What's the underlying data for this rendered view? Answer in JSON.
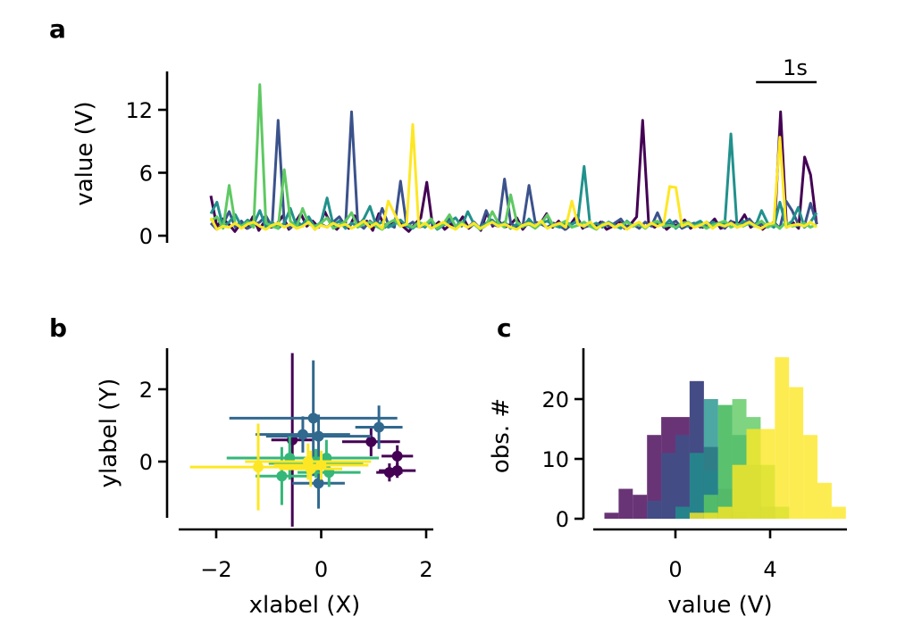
{
  "chart_data": [
    {
      "panel": "a",
      "type": "line",
      "ylabel": "value (V)",
      "ylim": [
        -0.5,
        15.5
      ],
      "yticks": [
        0,
        6,
        12
      ],
      "xlim": [
        0,
        100
      ],
      "scalebar": {
        "label": "1s",
        "length": 10
      },
      "series": [
        {
          "color": "#440154",
          "values": [
            3.8,
            0.9,
            1.6,
            1.1,
            0.4,
            1.2,
            0.7,
            1.8,
            0.5,
            1.4,
            0.8,
            1.1,
            1.9,
            0.6,
            1.2,
            2.1,
            0.9,
            1.4,
            0.8,
            2.3,
            1.1,
            0.6,
            1.3,
            0.7,
            1.9,
            0.9,
            1.4,
            0.5,
            2.1,
            0.8,
            1.2,
            1.6,
            0.9,
            0.4,
            1.1,
            1.7,
            5.1,
            0.8,
            1.3,
            0.6,
            1.1,
            0.9,
            1.8,
            0.7,
            1.2,
            0.5,
            2.2,
            0.9,
            1.4,
            0.8,
            1.1,
            1.7,
            0.6,
            1.3,
            0.9,
            1.2,
            2.1,
            0.8,
            1.4,
            0.6,
            1.1,
            1.9,
            0.7,
            1.2,
            0.8,
            1.3,
            0.6,
            0.9,
            1.4,
            0.7,
            1.1,
            1.8,
            11.0,
            1.2,
            0.8,
            1.3,
            0.6,
            1.1,
            0.9,
            1.5,
            0.7,
            1.2,
            0.8,
            1.0,
            1.6,
            0.7,
            0.9,
            1.3,
            1.1,
            2.0,
            0.8,
            1.2,
            0.6,
            1.1,
            0.9,
            11.8,
            0.8,
            1.3,
            0.7,
            7.5,
            5.8,
            1.1
          ]
        },
        {
          "color": "#3b528b",
          "values": [
            1.2,
            0.6,
            1.1,
            2.3,
            0.8,
            1.4,
            0.7,
            1.0,
            1.3,
            1.9,
            0.8,
            11.0,
            1.2,
            0.7,
            1.4,
            0.9,
            1.6,
            0.6,
            1.1,
            0.8,
            1.3,
            1.8,
            0.9,
            11.8,
            1.2,
            0.7,
            1.4,
            0.9,
            2.6,
            1.1,
            0.8,
            5.2,
            0.9,
            1.3,
            0.8,
            1.0,
            1.4,
            0.7,
            1.1,
            1.6,
            0.9,
            1.2,
            0.8,
            1.3,
            0.7,
            2.4,
            1.1,
            0.9,
            5.4,
            1.2,
            0.8,
            1.0,
            4.8,
            1.3,
            1.1,
            0.8,
            1.2,
            0.9,
            0.6,
            1.1,
            1.4,
            0.8,
            1.0,
            0.7,
            1.3,
            0.9,
            1.2,
            1.6,
            0.8,
            1.1,
            0.7,
            1.3,
            0.9,
            2.2,
            0.8,
            1.1,
            1.4,
            0.7,
            1.0,
            1.2,
            0.8,
            1.3,
            0.9,
            1.1,
            0.7,
            1.4,
            0.8,
            1.2,
            1.6,
            0.9,
            1.1,
            0.8,
            1.3,
            0.7,
            3.3,
            2.4,
            1.1,
            0.9,
            3.1,
            1.2
          ]
        },
        {
          "color": "#21918c",
          "values": [
            2.1,
            3.2,
            0.8,
            1.3,
            2.0,
            0.9,
            1.5,
            1.1,
            2.4,
            0.8,
            1.3,
            0.7,
            1.2,
            2.6,
            0.9,
            1.1,
            1.8,
            0.8,
            1.3,
            3.6,
            1.0,
            1.4,
            0.7,
            1.2,
            0.9,
            1.6,
            2.8,
            1.0,
            1.3,
            0.8,
            1.1,
            1.5,
            0.9,
            0.7,
            1.2,
            0.8,
            1.4,
            0.6,
            1.0,
            1.3,
            1.7,
            0.9,
            2.3,
            1.1,
            0.8,
            1.2,
            1.5,
            0.9,
            1.3,
            0.7,
            1.1,
            0.8,
            1.6,
            0.9,
            1.2,
            1.4,
            1.0,
            0.8,
            1.2,
            1.1,
            1.5,
            6.6,
            0.9,
            1.2,
            0.8,
            1.3,
            1.0,
            0.7,
            1.4,
            0.9,
            1.2,
            0.8,
            1.1,
            1.3,
            0.9,
            1.5,
            0.7,
            1.2,
            0.9,
            1.1,
            1.4,
            0.8,
            1.3,
            1.0,
            1.2,
            9.7,
            0.8,
            1.4,
            1.1,
            0.9,
            2.4,
            1.2,
            0.8,
            3.2,
            0.9,
            1.4,
            2.7,
            0.8,
            1.3,
            2.2
          ]
        },
        {
          "color": "#5ec962",
          "values": [
            1.4,
            1.8,
            0.7,
            4.8,
            1.1,
            0.9,
            1.3,
            0.8,
            14.4,
            1.2,
            0.9,
            0.7,
            6.3,
            1.4,
            0.8,
            2.6,
            1.1,
            0.9,
            1.2,
            1.7,
            0.7,
            1.0,
            1.4,
            2.2,
            0.8,
            1.1,
            1.3,
            0.9,
            0.6,
            1.2,
            1.5,
            0.9,
            1.1,
            0.8,
            1.3,
            1.0,
            1.6,
            0.7,
            1.1,
            2.0,
            0.9,
            1.3,
            0.8,
            1.1,
            0.6,
            1.0,
            2.3,
            1.2,
            0.8,
            3.9,
            1.3,
            0.9,
            1.1,
            0.7,
            1.2,
            2.0,
            0.9,
            1.1,
            1.4,
            0.8,
            1.0,
            1.3,
            0.9,
            0.6,
            1.1,
            1.2,
            0.8,
            1.0,
            1.3,
            0.9,
            1.1,
            0.7,
            1.2,
            1.4,
            0.9,
            1.0,
            0.8,
            1.2,
            1.3,
            0.9,
            1.1,
            0.7,
            1.0,
            1.2,
            1.4,
            0.8,
            1.1,
            0.9,
            1.2,
            1.0,
            1.4,
            0.8,
            1.1,
            0.7,
            1.3,
            0.9,
            1.0,
            1.2,
            0.8,
            1.1
          ]
        },
        {
          "color": "#fde725",
          "values": [
            1.7,
            0.6,
            0.9,
            0.8,
            1.2,
            0.7,
            1.1,
            1.3,
            0.9,
            0.6,
            1.0,
            1.2,
            0.8,
            1.1,
            0.7,
            0.9,
            1.3,
            0.6,
            1.0,
            0.8,
            1.2,
            0.9,
            1.1,
            0.7,
            1.0,
            1.4,
            0.8,
            1.2,
            0.7,
            3.3,
            2.1,
            0.9,
            1.1,
            10.6,
            0.8,
            1.2,
            0.7,
            1.0,
            1.3,
            0.9,
            0.6,
            1.1,
            0.8,
            1.2,
            0.7,
            1.0,
            1.3,
            0.9,
            1.1,
            0.8,
            0.6,
            1.0,
            1.2,
            0.9,
            1.4,
            0.7,
            1.0,
            1.2,
            0.8,
            3.3,
            1.1,
            0.9,
            1.3,
            0.7,
            1.0,
            1.2,
            0.8,
            1.1,
            0.6,
            1.0,
            1.3,
            0.8,
            1.2,
            0.9,
            1.1,
            4.7,
            4.6,
            0.9,
            1.2,
            0.8,
            1.0,
            1.3,
            0.7,
            1.1,
            0.9,
            1.2,
            0.8,
            1.0,
            1.3,
            0.9,
            0.7,
            1.1,
            1.2,
            9.4,
            0.8,
            1.0,
            1.1,
            0.9,
            1.3,
            0.8
          ]
        }
      ]
    },
    {
      "panel": "b",
      "type": "scatter",
      "xlabel": "xlabel (X)",
      "ylabel": "ylabel (Y)",
      "xlim": [
        -2.8,
        2.2
      ],
      "ylim": [
        -1.5,
        3.1
      ],
      "xticks": [
        -2,
        0,
        2
      ],
      "yticks": [
        0,
        2
      ],
      "series": [
        {
          "color": "#440154",
          "points": [
            {
              "x": -0.55,
              "y": 0.6,
              "xerr": 0.4,
              "yerr": 2.4
            },
            {
              "x": 0.95,
              "y": 0.55,
              "xerr": 0.55,
              "yerr": 0.4
            },
            {
              "x": 1.45,
              "y": 0.15,
              "xerr": 0.3,
              "yerr": 0.3
            },
            {
              "x": 1.3,
              "y": -0.3,
              "xerr": 0.25,
              "yerr": 0.25
            },
            {
              "x": 1.45,
              "y": -0.25,
              "xerr": 0.35,
              "yerr": 0.2
            }
          ]
        },
        {
          "color": "#31688e",
          "points": [
            {
              "x": -0.15,
              "y": 1.2,
              "xerr": 1.6,
              "yerr": 1.6
            },
            {
              "x": -0.35,
              "y": 0.75,
              "xerr": 0.9,
              "yerr": 0.5
            },
            {
              "x": -0.05,
              "y": 0.7,
              "xerr": 1.0,
              "yerr": 0.6
            },
            {
              "x": 1.1,
              "y": 0.95,
              "xerr": 0.45,
              "yerr": 0.6
            },
            {
              "x": -0.05,
              "y": -0.6,
              "xerr": 0.5,
              "yerr": 0.7
            }
          ]
        },
        {
          "color": "#35b779",
          "points": [
            {
              "x": -0.75,
              "y": -0.4,
              "xerr": 0.5,
              "yerr": 0.8
            },
            {
              "x": -0.6,
              "y": 0.1,
              "xerr": 1.2,
              "yerr": 0.6
            },
            {
              "x": 0.1,
              "y": 0.1,
              "xerr": 1.0,
              "yerr": 0.5
            },
            {
              "x": 0.15,
              "y": -0.3,
              "xerr": 0.6,
              "yerr": 0.4
            },
            {
              "x": -0.1,
              "y": -0.05,
              "xerr": 0.9,
              "yerr": 0.4
            }
          ]
        },
        {
          "color": "#fde725",
          "points": [
            {
              "x": -1.2,
              "y": -0.15,
              "xerr": 1.3,
              "yerr": 1.2
            },
            {
              "x": -0.25,
              "y": 0.0,
              "xerr": 1.2,
              "yerr": 0.5
            },
            {
              "x": -0.2,
              "y": -0.2,
              "xerr": 0.6,
              "yerr": 0.5
            },
            {
              "x": 0.0,
              "y": -0.1,
              "xerr": 0.9,
              "yerr": 0.4
            }
          ]
        }
      ]
    },
    {
      "panel": "c",
      "type": "histogram",
      "xlabel": "value (V)",
      "ylabel": "obs. #",
      "xlim": [
        -3.6,
        7.3
      ],
      "ylim": [
        0,
        28
      ],
      "xticks": [
        0,
        4
      ],
      "yticks": [
        0,
        10,
        20
      ],
      "series": [
        {
          "color": "#440154",
          "bins": [
            [
              -3.0,
              -2.4,
              1
            ],
            [
              -2.4,
              -1.8,
              5
            ],
            [
              -1.8,
              -1.2,
              4
            ],
            [
              -1.2,
              -0.6,
              14
            ],
            [
              -0.6,
              0.0,
              17
            ],
            [
              0.0,
              0.6,
              17
            ],
            [
              0.6,
              1.2,
              23
            ],
            [
              1.2,
              1.8,
              12
            ],
            [
              1.8,
              2.4,
              5
            ],
            [
              2.4,
              3.0,
              1
            ]
          ]
        },
        {
          "color": "#3b528b",
          "bins": [
            [
              -1.2,
              -0.6,
              3
            ],
            [
              -0.6,
              0.0,
              11
            ],
            [
              0.0,
              0.6,
              14
            ],
            [
              0.6,
              1.2,
              23
            ],
            [
              1.2,
              1.8,
              8
            ],
            [
              1.8,
              2.4,
              3
            ]
          ]
        },
        {
          "color": "#21918c",
          "bins": [
            [
              0.0,
              0.6,
              2
            ],
            [
              0.6,
              1.2,
              11
            ],
            [
              1.2,
              1.8,
              20
            ],
            [
              1.8,
              2.4,
              19
            ],
            [
              2.4,
              3.0,
              14
            ],
            [
              3.0,
              3.6,
              9
            ],
            [
              3.6,
              4.2,
              2
            ]
          ]
        },
        {
          "color": "#5ec962",
          "bins": [
            [
              1.2,
              1.8,
              4
            ],
            [
              1.8,
              2.4,
              19
            ],
            [
              2.4,
              3.0,
              20
            ],
            [
              3.0,
              3.6,
              17
            ],
            [
              3.6,
              4.2,
              9
            ],
            [
              4.2,
              4.8,
              2
            ]
          ]
        },
        {
          "color": "#fde725",
          "bins": [
            [
              0.6,
              1.2,
              1
            ],
            [
              1.2,
              1.8,
              1
            ],
            [
              1.8,
              2.4,
              2
            ],
            [
              2.4,
              3.0,
              9
            ],
            [
              3.0,
              3.6,
              15
            ],
            [
              3.6,
              4.2,
              15
            ],
            [
              4.2,
              4.8,
              27
            ],
            [
              4.8,
              5.4,
              22
            ],
            [
              5.4,
              6.0,
              14
            ],
            [
              6.0,
              6.6,
              6
            ],
            [
              6.6,
              7.2,
              2
            ]
          ]
        }
      ]
    }
  ]
}
